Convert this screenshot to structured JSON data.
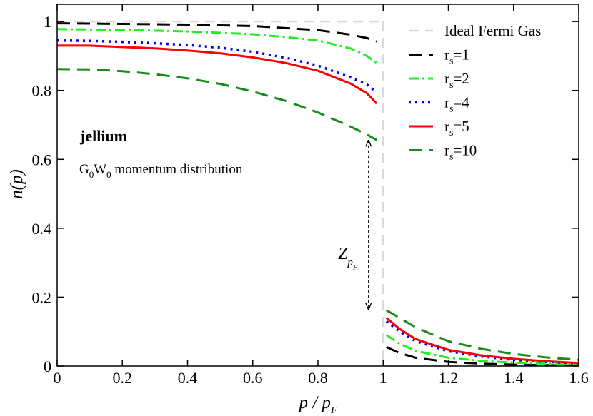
{
  "chart_data": {
    "type": "line",
    "title": "",
    "xlabel": "p / p",
    "xlabel_sub": "F",
    "ylabel": "n(p)",
    "xlim": [
      0,
      1.6
    ],
    "ylim": [
      0,
      1.05
    ],
    "x_ticks": [
      0,
      0.2,
      0.4,
      0.6,
      0.8,
      1,
      1.2,
      1.4,
      1.6
    ],
    "x_tick_labels": [
      "0",
      "0.2",
      "0.4",
      "0.6",
      "0.8",
      "1",
      "1.2",
      "1.4",
      "1.6"
    ],
    "y_ticks": [
      0,
      0.2,
      0.4,
      0.6,
      0.8,
      1
    ],
    "y_tick_labels": [
      "0",
      "0.2",
      "0.4",
      "0.6",
      "0.8",
      "1"
    ],
    "grid": false,
    "legend_position": "top-right",
    "series": [
      {
        "name": "Ideal Fermi Gas",
        "legend_main": "Ideal Fermi Gas",
        "legend_sub": "",
        "legend_tail": "",
        "color": "#d9d9d9",
        "dash": "14,9",
        "width": 2.5,
        "segments": [
          [
            [
              0,
              1
            ],
            [
              1,
              1
            ]
          ],
          [
            [
              1,
              1
            ],
            [
              1,
              0
            ]
          ],
          [
            [
              1,
              0
            ],
            [
              1.6,
              0
            ]
          ]
        ]
      },
      {
        "name": "rs=1",
        "legend_main": "r",
        "legend_sub": "s",
        "legend_tail": "=1",
        "color": "#000000",
        "dash": "18,10",
        "width": 3,
        "segments": [
          [
            [
              0,
              0.995
            ],
            [
              0.2,
              0.993
            ],
            [
              0.4,
              0.991
            ],
            [
              0.6,
              0.987
            ],
            [
              0.8,
              0.975
            ],
            [
              0.9,
              0.962
            ],
            [
              0.95,
              0.952
            ],
            [
              0.98,
              0.942
            ]
          ],
          [
            [
              1.01,
              0.055
            ],
            [
              1.05,
              0.038
            ],
            [
              1.1,
              0.024
            ],
            [
              1.2,
              0.012
            ],
            [
              1.3,
              0.007
            ],
            [
              1.4,
              0.004
            ],
            [
              1.5,
              0.0025
            ],
            [
              1.6,
              0.0015
            ]
          ]
        ]
      },
      {
        "name": "rs=2",
        "legend_main": "r",
        "legend_sub": "s",
        "legend_tail": "=2",
        "color": "#22ee22",
        "dash": "14,5,3,5",
        "width": 3,
        "segments": [
          [
            [
              0,
              0.978
            ],
            [
              0.2,
              0.976
            ],
            [
              0.4,
              0.971
            ],
            [
              0.6,
              0.963
            ],
            [
              0.7,
              0.955
            ],
            [
              0.8,
              0.945
            ],
            [
              0.9,
              0.922
            ],
            [
              0.95,
              0.9
            ],
            [
              0.98,
              0.88
            ]
          ],
          [
            [
              1.01,
              0.09
            ],
            [
              1.05,
              0.065
            ],
            [
              1.1,
              0.044
            ],
            [
              1.2,
              0.024
            ],
            [
              1.3,
              0.015
            ],
            [
              1.4,
              0.01
            ],
            [
              1.5,
              0.007
            ],
            [
              1.6,
              0.005
            ]
          ]
        ]
      },
      {
        "name": "rs=4",
        "legend_main": "r",
        "legend_sub": "s",
        "legend_tail": "=4",
        "color": "#0000ee",
        "dash": "3,6",
        "width": 3.5,
        "segments": [
          [
            [
              0,
              0.945
            ],
            [
              0.1,
              0.944
            ],
            [
              0.2,
              0.941
            ],
            [
              0.3,
              0.937
            ],
            [
              0.4,
              0.932
            ],
            [
              0.5,
              0.924
            ],
            [
              0.6,
              0.912
            ],
            [
              0.7,
              0.895
            ],
            [
              0.8,
              0.872
            ],
            [
              0.9,
              0.838
            ],
            [
              0.95,
              0.817
            ],
            [
              0.98,
              0.795
            ]
          ],
          [
            [
              1.01,
              0.13
            ],
            [
              1.05,
              0.1
            ],
            [
              1.1,
              0.072
            ],
            [
              1.2,
              0.043
            ],
            [
              1.3,
              0.028
            ],
            [
              1.4,
              0.018
            ],
            [
              1.5,
              0.012
            ],
            [
              1.6,
              0.008
            ]
          ]
        ]
      },
      {
        "name": "rs=5",
        "legend_main": "r",
        "legend_sub": "s",
        "legend_tail": "=5",
        "color": "#ff0000",
        "dash": "",
        "width": 3,
        "segments": [
          [
            [
              0,
              0.93
            ],
            [
              0.1,
              0.93
            ],
            [
              0.2,
              0.926
            ],
            [
              0.3,
              0.922
            ],
            [
              0.4,
              0.916
            ],
            [
              0.5,
              0.908
            ],
            [
              0.6,
              0.896
            ],
            [
              0.7,
              0.88
            ],
            [
              0.8,
              0.857
            ],
            [
              0.9,
              0.82
            ],
            [
              0.95,
              0.792
            ],
            [
              0.98,
              0.762
            ]
          ],
          [
            [
              1.01,
              0.14
            ],
            [
              1.05,
              0.108
            ],
            [
              1.1,
              0.078
            ],
            [
              1.2,
              0.047
            ],
            [
              1.3,
              0.031
            ],
            [
              1.4,
              0.021
            ],
            [
              1.5,
              0.014
            ],
            [
              1.6,
              0.009
            ]
          ]
        ]
      },
      {
        "name": "rs=10",
        "legend_main": "r",
        "legend_sub": "s",
        "legend_tail": "=10",
        "color": "#1a8a1a",
        "dash": "18,10",
        "width": 3,
        "segments": [
          [
            [
              0,
              0.862
            ],
            [
              0.1,
              0.861
            ],
            [
              0.2,
              0.856
            ],
            [
              0.3,
              0.847
            ],
            [
              0.4,
              0.835
            ],
            [
              0.5,
              0.819
            ],
            [
              0.6,
              0.797
            ],
            [
              0.7,
              0.77
            ],
            [
              0.8,
              0.736
            ],
            [
              0.9,
              0.695
            ],
            [
              0.95,
              0.672
            ],
            [
              0.98,
              0.656
            ]
          ],
          [
            [
              1.01,
              0.162
            ],
            [
              1.05,
              0.14
            ],
            [
              1.1,
              0.112
            ],
            [
              1.2,
              0.072
            ],
            [
              1.3,
              0.05
            ],
            [
              1.4,
              0.035
            ],
            [
              1.5,
              0.025
            ],
            [
              1.6,
              0.018
            ]
          ]
        ]
      }
    ],
    "annotations": {
      "title": "jellium",
      "subtitle_parts": [
        "G",
        "0",
        "W",
        "0",
        " momentum distribution"
      ],
      "z_label": "Z",
      "z_sub": "p",
      "z_subsub": "F",
      "z_arrow": {
        "x": 0.955,
        "y_top": 0.655,
        "y_bottom": 0.165
      }
    }
  }
}
